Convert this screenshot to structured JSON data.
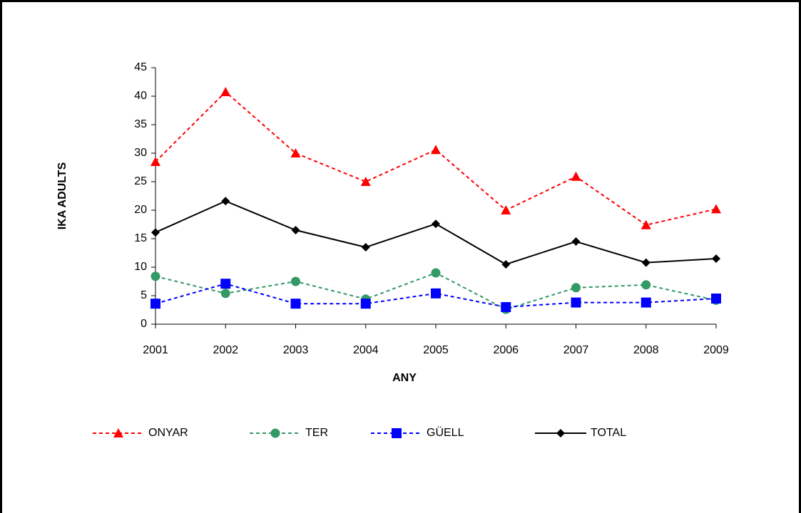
{
  "chart_data": {
    "type": "line",
    "x_label": "ANY",
    "y_label": "IKA ADULTS",
    "categories": [
      "2001",
      "2002",
      "2003",
      "2004",
      "2005",
      "2006",
      "2007",
      "2008",
      "2009"
    ],
    "ylim": [
      0,
      45
    ],
    "yticks": [
      0,
      5,
      10,
      15,
      20,
      25,
      30,
      35,
      40,
      45
    ],
    "grid": false,
    "legend": "bottom",
    "series": [
      {
        "name": "ONYAR",
        "color": "#ff0000",
        "dashed": true,
        "marker": "triangle",
        "values": [
          28.5,
          40.75,
          30,
          25,
          30.6,
          20,
          25.9,
          17.4,
          20.2
        ]
      },
      {
        "name": "TER",
        "color": "#339966",
        "dashed": true,
        "marker": "circle",
        "values": [
          8.4,
          5.4,
          7.5,
          4.4,
          9,
          2.6,
          6.4,
          6.9,
          4.2
        ]
      },
      {
        "name": "GÜELL",
        "color": "#0000ff",
        "dashed": true,
        "marker": "square",
        "values": [
          3.6,
          7.1,
          3.6,
          3.6,
          5.4,
          3.0,
          3.8,
          3.8,
          4.5
        ]
      },
      {
        "name": "TOTAL",
        "color": "#000000",
        "dashed": false,
        "marker": "diamond",
        "values": [
          16.1,
          21.6,
          16.5,
          13.5,
          17.6,
          10.5,
          14.5,
          10.8,
          11.5
        ]
      }
    ]
  }
}
